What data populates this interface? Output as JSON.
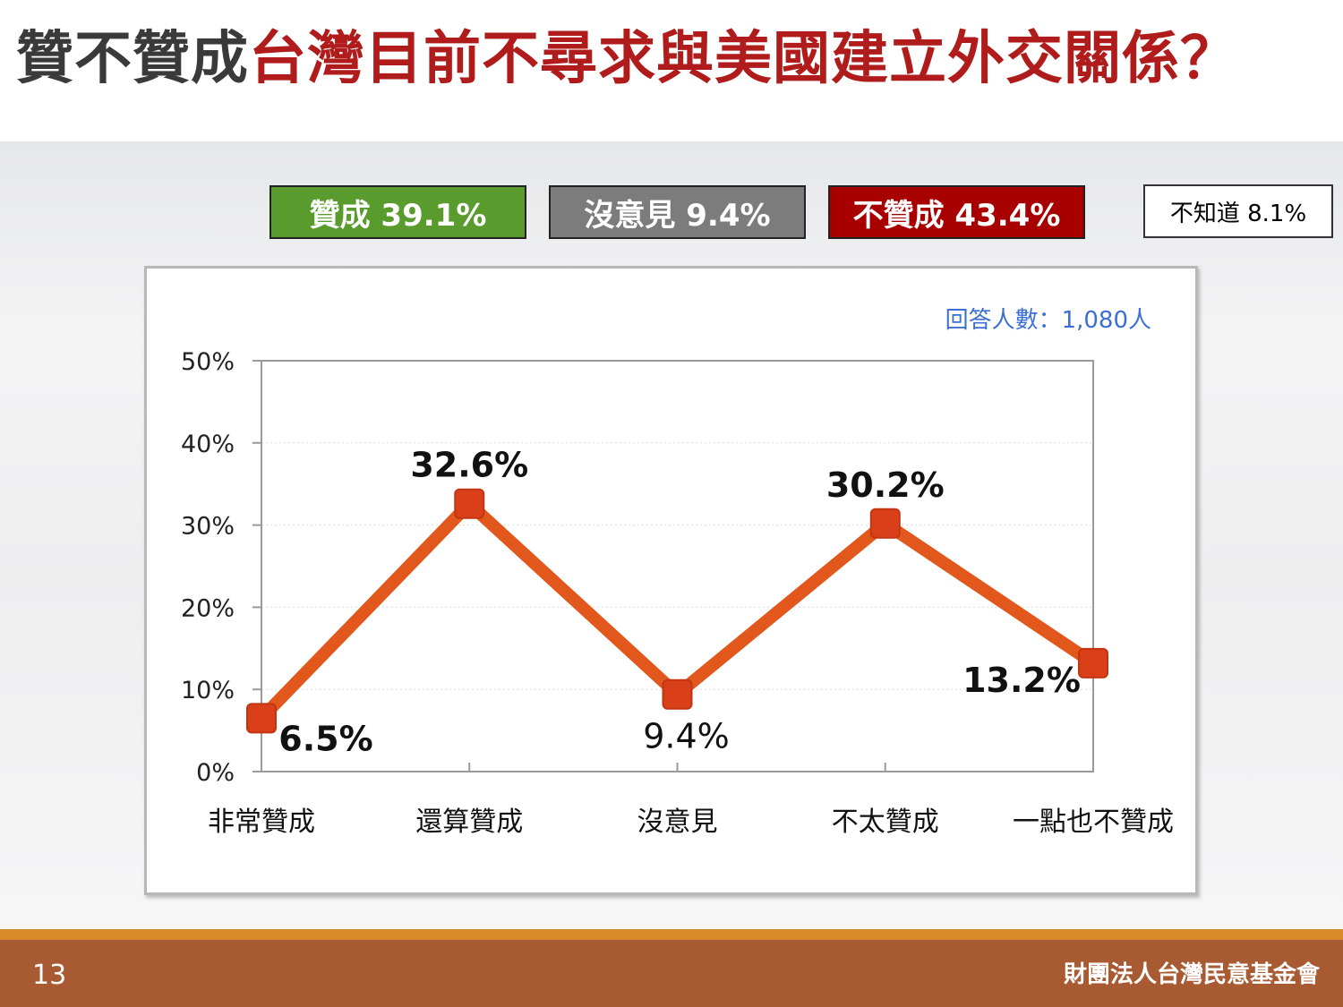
{
  "title": {
    "part1": "贊不贊成",
    "part2": "台灣目前不尋求與美國建立外交關係？"
  },
  "summary": {
    "agree": "贊成 39.1%",
    "neutral": "沒意見 9.4%",
    "disagree": "不贊成 43.4%",
    "unknown": "不知道 8.1%"
  },
  "colors": {
    "agree": "#5a9b2d",
    "neutral": "#7c7c7c",
    "disagree": "#a80000",
    "line": "#e2571c",
    "marker": "#d9401a",
    "note": "#3b6fd4"
  },
  "chart_data": {
    "type": "line",
    "note": "回答人數：1,080人",
    "categories": [
      "非常贊成",
      "還算贊成",
      "沒意見",
      "不太贊成",
      "一點也不贊成"
    ],
    "values": [
      6.5,
      32.6,
      9.4,
      30.2,
      13.2
    ],
    "labels": [
      "6.5%",
      "32.6%",
      "9.4%",
      "30.2%",
      "13.2%"
    ],
    "ylim": [
      0,
      50
    ],
    "yticks": [
      "0%",
      "10%",
      "20%",
      "30%",
      "40%",
      "50%"
    ],
    "grid": true
  },
  "footer": {
    "page": "13",
    "org": "財團法人台灣民意基金會"
  }
}
